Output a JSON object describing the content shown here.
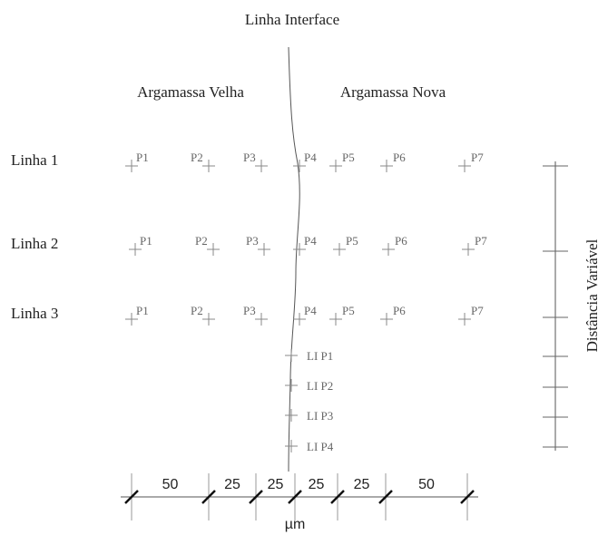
{
  "title": "Linha Interface",
  "regions": [
    "Argamassa Velha",
    "Argamassa Nova"
  ],
  "lines": [
    {
      "label": "Linha 1",
      "points": [
        "P1",
        "P2",
        "P3",
        "P4",
        "P5",
        "P6",
        "P7"
      ]
    },
    {
      "label": "Linha 2",
      "points": [
        "P1",
        "P2",
        "P3",
        "P4",
        "P5",
        "P6",
        "P7"
      ]
    },
    {
      "label": "Linha 3",
      "points": [
        "P1",
        "P2",
        "P3",
        "P4",
        "P5",
        "P6",
        "P7"
      ]
    }
  ],
  "interface_points": [
    "LI P1",
    "LI P2",
    "LI P3",
    "LI P4"
  ],
  "dimensions": [
    "50",
    "25",
    "25",
    "25",
    "25",
    "50"
  ],
  "unit": "µm",
  "side_label": "Distância Variável"
}
